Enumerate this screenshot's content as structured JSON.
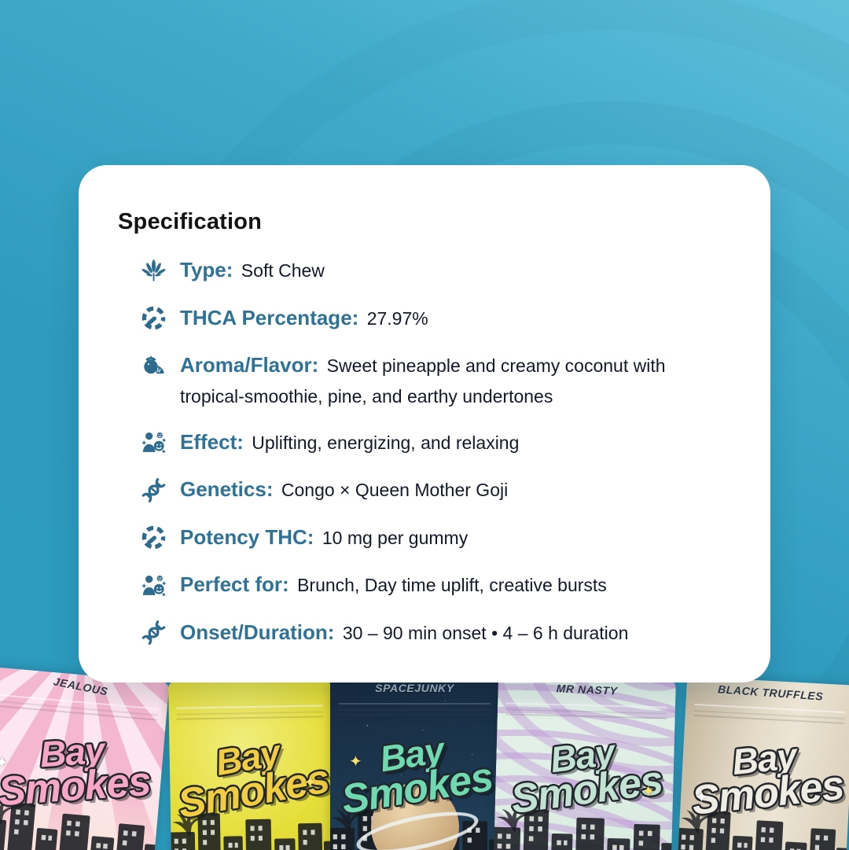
{
  "page": {
    "background_base_color": "#2c9cbf",
    "background_light_color": "#5fc0db"
  },
  "card": {
    "title": "Specification",
    "label_color": "#2e7396",
    "icon_color": "#2d6b8f",
    "items": [
      {
        "icon": "cannabis-leaf-icon",
        "label": "Type:",
        "value": "Soft Chew"
      },
      {
        "icon": "gauge-icon",
        "label": "THCA Percentage:",
        "value": "27.97%"
      },
      {
        "icon": "fruit-icon",
        "label": "Aroma/Flavor:",
        "value": "Sweet pineapple and creamy coconut with tropical-smoothie, pine, and earthy undertones"
      },
      {
        "icon": "person-mood-icon",
        "label": "Effect:",
        "value": "Uplifting, energizing, and relaxing"
      },
      {
        "icon": "dna-icon",
        "label": "Genetics:",
        "value": "Congo × Queen Mother Goji"
      },
      {
        "icon": "gauge-icon",
        "label": "Potency THC:",
        "value": "10 mg per gummy"
      },
      {
        "icon": "person-mood-icon",
        "label": "Perfect for:",
        "value": "Brunch, Day time uplift, creative bursts"
      },
      {
        "icon": "dna-icon",
        "label": "Onset/Duration:",
        "value": "30 – 90 min onset • 4 – 6 h duration"
      }
    ]
  },
  "brand_logo": {
    "line1": "Bay",
    "line2": "Smokes"
  },
  "products": [
    {
      "name": "JEALOUS",
      "theme": "pink",
      "accent_color": "#f8a6c8"
    },
    {
      "name": "",
      "theme": "yellow",
      "accent_color": "#f2cd3f"
    },
    {
      "name": "SPACEJUNKY",
      "theme": "navy",
      "accent_color": "#6fdab1"
    },
    {
      "name": "MR NASTY",
      "theme": "mint",
      "accent_color": "#c2e2d4"
    },
    {
      "name": "BLACK TRUFFLES",
      "theme": "tan",
      "accent_color": "#efece4"
    }
  ]
}
